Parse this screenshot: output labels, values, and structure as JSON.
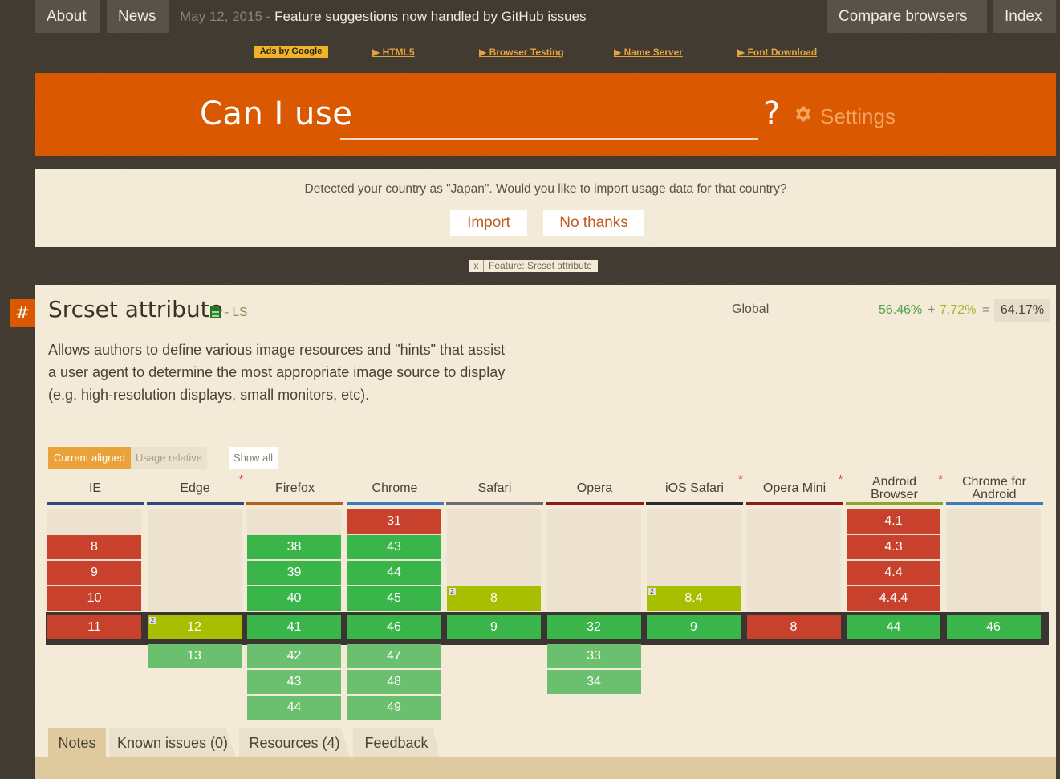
{
  "nav": {
    "about": "About",
    "news": "News",
    "compare": "Compare browsers",
    "index": "Index"
  },
  "ticker": {
    "date": "May 12, 2015",
    "separator": " - ",
    "headline": "Feature suggestions now handled by GitHub issues"
  },
  "ads": {
    "badge": "Ads by Google",
    "links": [
      "▶ HTML5",
      "▶ Browser Testing",
      "▶ Name Server",
      "▶ Font Download"
    ]
  },
  "search": {
    "label": "Can I use",
    "value": "",
    "question": "?",
    "settings": "Settings"
  },
  "country_prompt": {
    "message": "Detected your country as \"Japan\". Would you like to import usage data for that country?",
    "import": "Import",
    "decline": "No thanks"
  },
  "filter_chip": {
    "close": "x",
    "label": "Feature: Srcset attribute"
  },
  "feature": {
    "anchor": "#",
    "title": "Srcset attribute",
    "status": "- LS",
    "description": "Allows authors to define various image resources and \"hints\" that assist a user agent to determine the most appropriate image source to display (e.g. high-resolution displays, small monitors, etc).",
    "usage": {
      "scope": "Global",
      "full": "56.46%",
      "plus": "+",
      "partial": "7.72%",
      "equals": "=",
      "total": "64.17%"
    }
  },
  "view_controls": {
    "current_aligned": "Current aligned",
    "usage_relative": "Usage relative",
    "show_all": "Show all"
  },
  "browsers": [
    {
      "id": "ie",
      "name": "IE",
      "color": "#2e4a7e",
      "star": false,
      "cells": [
        {
          "v": "8",
          "s": "n",
          "row": 1
        },
        {
          "v": "9",
          "s": "n",
          "row": 2
        },
        {
          "v": "10",
          "s": "n",
          "row": 3
        },
        {
          "v": "11",
          "s": "n",
          "row": 4
        }
      ]
    },
    {
      "id": "edge",
      "name": "Edge",
      "color": "#2e4a7e",
      "star": true,
      "cells": [
        {
          "v": "12",
          "s": "a",
          "row": 4,
          "note": "2"
        },
        {
          "v": "13",
          "s": "y-light",
          "row": 5
        }
      ]
    },
    {
      "id": "firefox",
      "name": "Firefox",
      "color": "#b35f1e",
      "star": false,
      "cells": [
        {
          "v": "38",
          "s": "y",
          "row": 1
        },
        {
          "v": "39",
          "s": "y",
          "row": 2
        },
        {
          "v": "40",
          "s": "y",
          "row": 3
        },
        {
          "v": "41",
          "s": "y",
          "row": 4
        },
        {
          "v": "42",
          "s": "y-light",
          "row": 5
        },
        {
          "v": "43",
          "s": "y-light",
          "row": 6
        },
        {
          "v": "44",
          "s": "y-light",
          "row": 7
        }
      ]
    },
    {
      "id": "chrome",
      "name": "Chrome",
      "color": "#3a7abf",
      "star": false,
      "cells": [
        {
          "v": "31",
          "s": "n",
          "row": 0
        },
        {
          "v": "43",
          "s": "y",
          "row": 1
        },
        {
          "v": "44",
          "s": "y",
          "row": 2
        },
        {
          "v": "45",
          "s": "y",
          "row": 3
        },
        {
          "v": "46",
          "s": "y",
          "row": 4
        },
        {
          "v": "47",
          "s": "y-light",
          "row": 5
        },
        {
          "v": "48",
          "s": "y-light",
          "row": 6
        },
        {
          "v": "49",
          "s": "y-light",
          "row": 7
        }
      ]
    },
    {
      "id": "safari",
      "name": "Safari",
      "color": "#6d6d6d",
      "star": false,
      "cells": [
        {
          "v": "8",
          "s": "a",
          "row": 3,
          "note": "2"
        },
        {
          "v": "9",
          "s": "y",
          "row": 4
        }
      ]
    },
    {
      "id": "opera",
      "name": "Opera",
      "color": "#8e1b1b",
      "star": false,
      "cells": [
        {
          "v": "32",
          "s": "y",
          "row": 4
        },
        {
          "v": "33",
          "s": "y-light",
          "row": 5
        },
        {
          "v": "34",
          "s": "y-light",
          "row": 6
        }
      ]
    },
    {
      "id": "ios-safari",
      "name": "iOS Safari",
      "color": "#2b2b2b",
      "star": true,
      "cells": [
        {
          "v": "8.4",
          "s": "a",
          "row": 3,
          "note": "2"
        },
        {
          "v": "9",
          "s": "y",
          "row": 4
        }
      ]
    },
    {
      "id": "opera-mini",
      "name": "Opera Mini",
      "color": "#8e1b1b",
      "star": true,
      "cells": [
        {
          "v": "8",
          "s": "n",
          "row": 4
        }
      ]
    },
    {
      "id": "android-browser",
      "name": "Android Browser",
      "color": "#86a82c",
      "star": true,
      "cells": [
        {
          "v": "4.1",
          "s": "n",
          "row": 0
        },
        {
          "v": "4.3",
          "s": "n",
          "row": 1
        },
        {
          "v": "4.4",
          "s": "n",
          "row": 2
        },
        {
          "v": "4.4.4",
          "s": "n",
          "row": 3
        },
        {
          "v": "44",
          "s": "y",
          "row": 4
        }
      ]
    },
    {
      "id": "chrome-android",
      "name": "Chrome for Android",
      "color": "#3a7abf",
      "star": false,
      "cells": [
        {
          "v": "46",
          "s": "y",
          "row": 4
        }
      ]
    }
  ],
  "star_symbol": "*",
  "tabs": [
    "Notes",
    "Known issues (0)",
    "Resources (4)",
    "Feedback"
  ],
  "colors": {
    "accent": "#da5800",
    "supported": "#39b54a",
    "unsupported": "#c8412d",
    "partial": "#a8be00",
    "panel": "#f3ead8"
  }
}
